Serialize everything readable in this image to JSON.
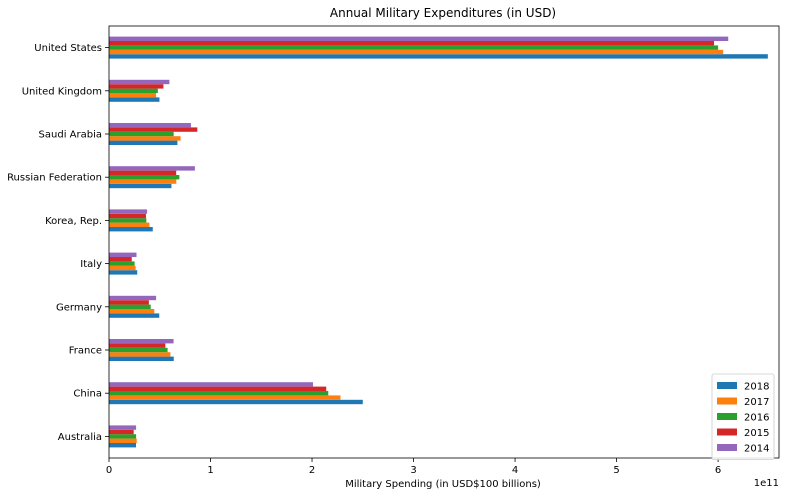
{
  "chart_data": {
    "type": "bar",
    "orientation": "horizontal",
    "title": "Annual Military Expenditures (in USD)",
    "xlabel": "Military Spending (in USD$100 billions)",
    "ylabel": "",
    "x_offset_label": "1e11",
    "xlim": [
      0,
      660000000000.0
    ],
    "x_ticks": [
      0,
      100000000000.0,
      200000000000.0,
      300000000000.0,
      400000000000.0,
      500000000000.0,
      600000000000.0
    ],
    "x_tick_labels": [
      "0",
      "1",
      "2",
      "3",
      "4",
      "5",
      "6"
    ],
    "grid": false,
    "legend_position": "lower-right",
    "categories": [
      "Australia",
      "China",
      "France",
      "Germany",
      "Italy",
      "Korea, Rep.",
      "Russian Federation",
      "Saudi Arabia",
      "United Kingdom",
      "United States"
    ],
    "series": [
      {
        "name": "2018",
        "color": "#1f77b4",
        "values": [
          26600000000.0,
          250000000000.0,
          63800000000.0,
          49500000000.0,
          27800000000.0,
          43100000000.0,
          61500000000.0,
          67400000000.0,
          49700000000.0,
          649000000000.0
        ]
      },
      {
        "name": "2017",
        "color": "#ff7f0e",
        "values": [
          27300000000.0,
          228000000000.0,
          60500000000.0,
          44600000000.0,
          26200000000.0,
          39800000000.0,
          66300000000.0,
          70500000000.0,
          46400000000.0,
          605000000000.0
        ]
      },
      {
        "name": "2016",
        "color": "#2ca02c",
        "values": [
          26700000000.0,
          216000000000.0,
          57700000000.0,
          41100000000.0,
          25200000000.0,
          36800000000.0,
          69300000000.0,
          63700000000.0,
          48100000000.0,
          600000000000.0
        ]
      },
      {
        "name": "2015",
        "color": "#d62728",
        "values": [
          24300000000.0,
          214000000000.0,
          55500000000.0,
          39300000000.0,
          22400000000.0,
          36400000000.0,
          66200000000.0,
          87000000000.0,
          53600000000.0,
          596000000000.0
        ]
      },
      {
        "name": "2014",
        "color": "#9467bd",
        "values": [
          26700000000.0,
          201000000000.0,
          63600000000.0,
          46400000000.0,
          27100000000.0,
          37500000000.0,
          84600000000.0,
          80700000000.0,
          59500000000.0,
          610000000000.0
        ]
      }
    ]
  }
}
